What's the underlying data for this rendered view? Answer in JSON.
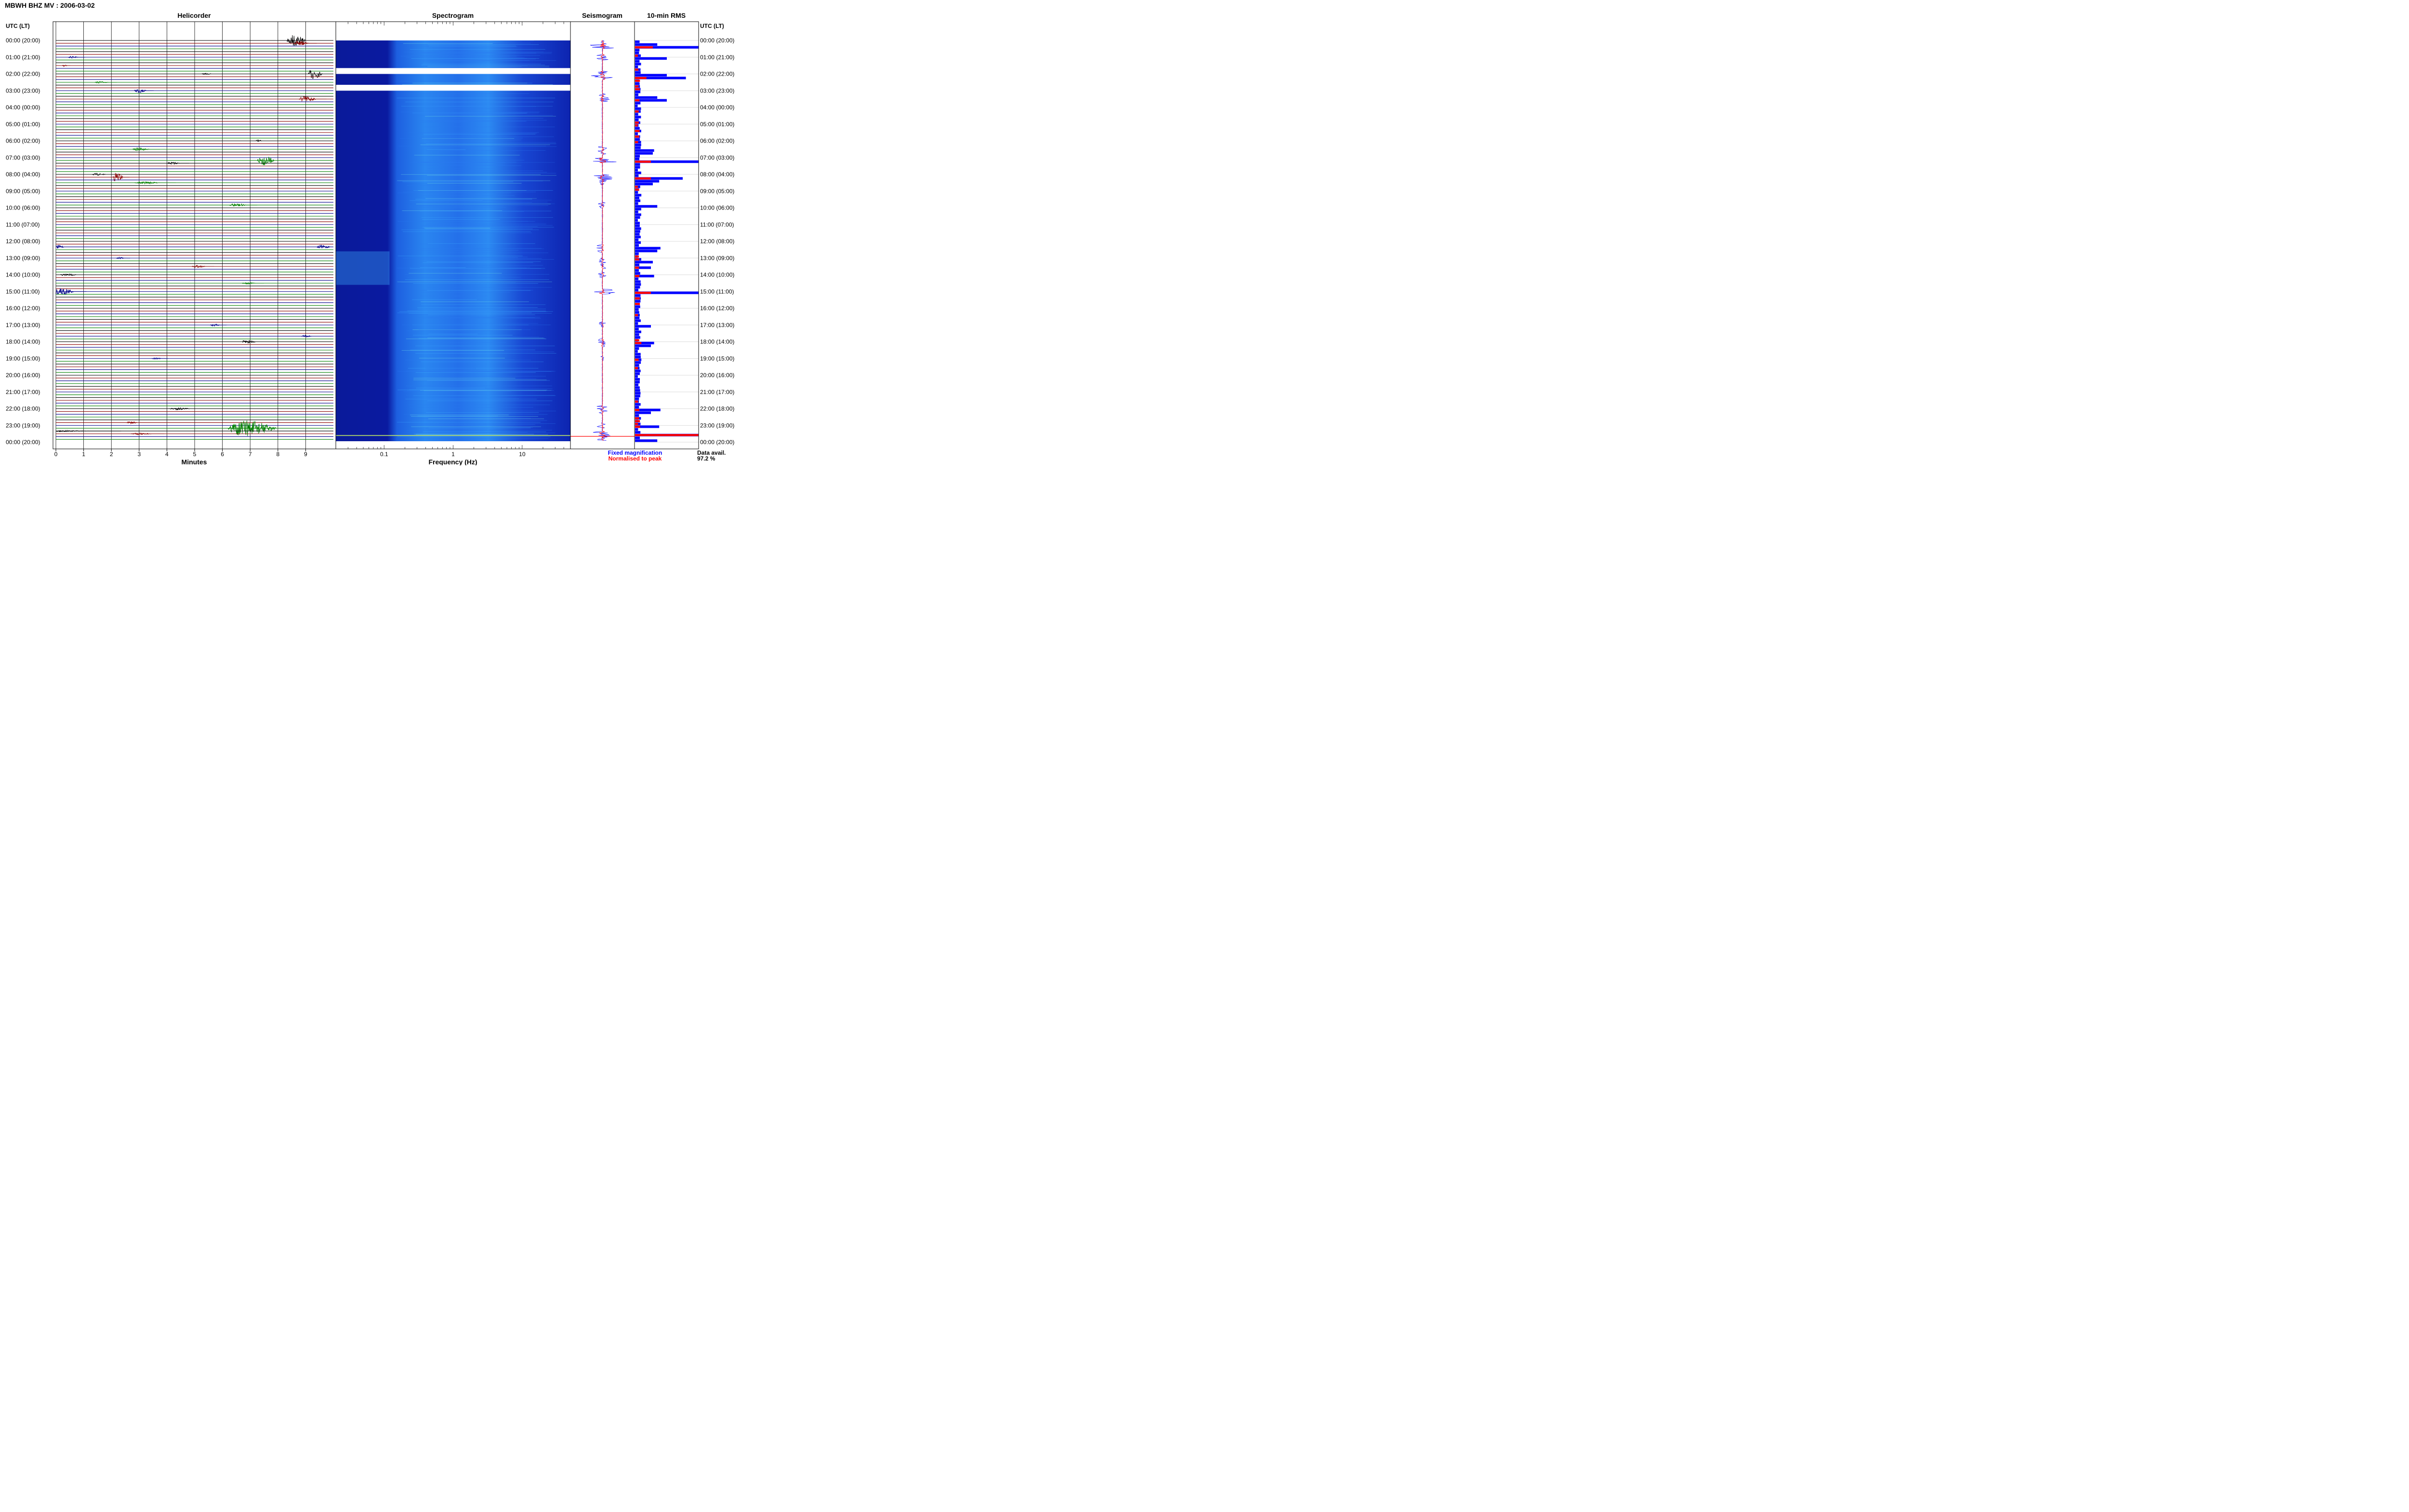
{
  "title": "MBWH BHZ MV : 2006-03-02",
  "panels": {
    "helicorder": "Helicorder",
    "spectrogram": "Spectrogram",
    "seismogram": "Seismogram",
    "rms": "10-min RMS"
  },
  "utc_header_left": "UTC (LT)",
  "utc_header_right": "UTC (LT)",
  "time_labels": [
    "00:00 (20:00)",
    "01:00 (21:00)",
    "02:00 (22:00)",
    "03:00 (23:00)",
    "04:00 (00:00)",
    "05:00 (01:00)",
    "06:00 (02:00)",
    "07:00 (03:00)",
    "08:00 (04:00)",
    "09:00 (05:00)",
    "10:00 (06:00)",
    "11:00 (07:00)",
    "12:00 (08:00)",
    "13:00 (09:00)",
    "14:00 (10:00)",
    "15:00 (11:00)",
    "16:00 (12:00)",
    "17:00 (13:00)",
    "18:00 (14:00)",
    "19:00 (15:00)",
    "20:00 (16:00)",
    "21:00 (17:00)",
    "22:00 (18:00)",
    "23:00 (19:00)",
    "00:00 (20:00)"
  ],
  "colors": {
    "trace_cycle": [
      "#000000",
      "#8b0000",
      "#00008b",
      "#008000"
    ],
    "spec_bg": "#0a1a9a",
    "rms_fixed": "#0000ff",
    "rms_norm": "#ff0000",
    "legend_fixed": "#0000ff",
    "legend_norm": "#ff0000"
  },
  "chart_data": [
    {
      "type": "line",
      "title": "Helicorder",
      "xlabel": "Minutes",
      "ylabel": "UTC (LT)",
      "xlim": [
        0,
        10
      ],
      "x_ticks": [
        "0",
        "1",
        "2",
        "3",
        "4",
        "5",
        "6",
        "7",
        "8",
        "9"
      ],
      "rows": 144,
      "row_minutes": 10,
      "events": [
        {
          "row": 0,
          "minute": 8.6,
          "amp": 3.2,
          "dur": 1.1
        },
        {
          "row": 1,
          "minute": 8.8,
          "amp": 1.2,
          "dur": 0.8
        },
        {
          "row": 6,
          "minute": 0.6,
          "amp": 0.6,
          "dur": 0.6
        },
        {
          "row": 9,
          "minute": 0.3,
          "amp": 0.5,
          "dur": 0.3
        },
        {
          "row": 12,
          "minute": 9.3,
          "amp": 2.8,
          "dur": 0.8
        },
        {
          "row": 12,
          "minute": 5.4,
          "amp": 0.4,
          "dur": 0.6
        },
        {
          "row": 15,
          "minute": 1.6,
          "amp": 0.5,
          "dur": 0.8
        },
        {
          "row": 18,
          "minute": 3.0,
          "amp": 1.2,
          "dur": 0.7
        },
        {
          "row": 21,
          "minute": 9.0,
          "amp": 1.6,
          "dur": 1.0
        },
        {
          "row": 36,
          "minute": 7.3,
          "amp": 0.6,
          "dur": 0.4
        },
        {
          "row": 39,
          "minute": 3.0,
          "amp": 0.8,
          "dur": 1.0
        },
        {
          "row": 43,
          "minute": 7.5,
          "amp": 2.6,
          "dur": 1.0
        },
        {
          "row": 44,
          "minute": 4.2,
          "amp": 0.6,
          "dur": 0.8
        },
        {
          "row": 48,
          "minute": 1.5,
          "amp": 0.6,
          "dur": 0.8
        },
        {
          "row": 49,
          "minute": 2.2,
          "amp": 2.6,
          "dur": 0.6
        },
        {
          "row": 51,
          "minute": 3.2,
          "amp": 0.6,
          "dur": 1.5
        },
        {
          "row": 59,
          "minute": 6.5,
          "amp": 0.9,
          "dur": 1.0
        },
        {
          "row": 74,
          "minute": 9.6,
          "amp": 1.0,
          "dur": 0.8
        },
        {
          "row": 74,
          "minute": 0.1,
          "amp": 1.0,
          "dur": 0.5
        },
        {
          "row": 81,
          "minute": 5.1,
          "amp": 0.6,
          "dur": 0.8
        },
        {
          "row": 78,
          "minute": 2.3,
          "amp": 0.5,
          "dur": 0.5
        },
        {
          "row": 84,
          "minute": 0.4,
          "amp": 0.6,
          "dur": 1.0
        },
        {
          "row": 87,
          "minute": 6.9,
          "amp": 0.5,
          "dur": 0.8
        },
        {
          "row": 90,
          "minute": 0.2,
          "amp": 2.2,
          "dur": 1.2
        },
        {
          "row": 102,
          "minute": 5.7,
          "amp": 0.6,
          "dur": 0.6
        },
        {
          "row": 106,
          "minute": 9.0,
          "amp": 0.6,
          "dur": 0.6
        },
        {
          "row": 108,
          "minute": 6.9,
          "amp": 1.0,
          "dur": 0.8
        },
        {
          "row": 114,
          "minute": 3.6,
          "amp": 0.4,
          "dur": 0.6
        },
        {
          "row": 132,
          "minute": 4.4,
          "amp": 0.6,
          "dur": 1.2
        },
        {
          "row": 137,
          "minute": 2.7,
          "amp": 0.7,
          "dur": 0.6
        },
        {
          "row": 139,
          "minute": 6.9,
          "amp": 4.2,
          "dur": 2.8
        },
        {
          "row": 140,
          "minute": 0.1,
          "amp": 0.4,
          "dur": 3.0
        },
        {
          "row": 141,
          "minute": 3.0,
          "amp": 0.5,
          "dur": 1.2
        }
      ]
    },
    {
      "type": "heatmap",
      "title": "Spectrogram",
      "xlabel": "Frequency (Hz)",
      "xscale": "log",
      "xlim": [
        0.02,
        50
      ],
      "x_ticks": [
        0.1,
        1,
        10
      ],
      "x_tick_labels": [
        "0.1",
        "1",
        "10"
      ],
      "data_gaps_hours": [
        [
          1.65,
          2.0
        ],
        [
          2.65,
          3.0
        ]
      ]
    },
    {
      "type": "line",
      "title": "Seismogram",
      "series": [
        {
          "name": "Fixed magnification"
        },
        {
          "name": "Normalised to peak"
        }
      ]
    },
    {
      "type": "bar",
      "title": "10-min RMS",
      "orientation": "horizontal",
      "bins": 144,
      "spikes_fixed": [
        {
          "row": 2,
          "value": 1.0
        },
        {
          "row": 1,
          "value": 0.35
        },
        {
          "row": 6,
          "value": 0.5
        },
        {
          "row": 12,
          "value": 0.5
        },
        {
          "row": 13,
          "value": 0.8
        },
        {
          "row": 20,
          "value": 0.35
        },
        {
          "row": 21,
          "value": 0.5
        },
        {
          "row": 39,
          "value": 0.3
        },
        {
          "row": 40,
          "value": 0.28
        },
        {
          "row": 43,
          "value": 1.0
        },
        {
          "row": 49,
          "value": 0.75
        },
        {
          "row": 50,
          "value": 0.38
        },
        {
          "row": 51,
          "value": 0.28
        },
        {
          "row": 59,
          "value": 0.35
        },
        {
          "row": 74,
          "value": 0.4
        },
        {
          "row": 75,
          "value": 0.35
        },
        {
          "row": 79,
          "value": 0.28
        },
        {
          "row": 81,
          "value": 0.25
        },
        {
          "row": 84,
          "value": 0.3
        },
        {
          "row": 90,
          "value": 1.0
        },
        {
          "row": 109,
          "value": 0.25
        },
        {
          "row": 108,
          "value": 0.3
        },
        {
          "row": 114,
          "value": 0.1
        },
        {
          "row": 132,
          "value": 0.4
        },
        {
          "row": 133,
          "value": 0.25
        },
        {
          "row": 138,
          "value": 0.38
        },
        {
          "row": 141,
          "value": 1.0
        },
        {
          "row": 143,
          "value": 0.35
        },
        {
          "row": 102,
          "value": 0.25
        }
      ],
      "spikes_norm": [
        {
          "row": 2,
          "value": 0.28
        },
        {
          "row": 13,
          "value": 0.18
        },
        {
          "row": 43,
          "value": 0.25
        },
        {
          "row": 49,
          "value": 0.25
        },
        {
          "row": 90,
          "value": 0.25
        },
        {
          "row": 141,
          "value": 1.0
        },
        {
          "row": 21,
          "value": 0.07
        },
        {
          "row": 108,
          "value": 0.1
        },
        {
          "row": 138,
          "value": 0.08
        }
      ]
    }
  ],
  "legend": {
    "fixed": "Fixed magnification",
    "norm": "Normalised to peak"
  },
  "availability": {
    "label": "Data avail.",
    "value": "97.2 %"
  }
}
